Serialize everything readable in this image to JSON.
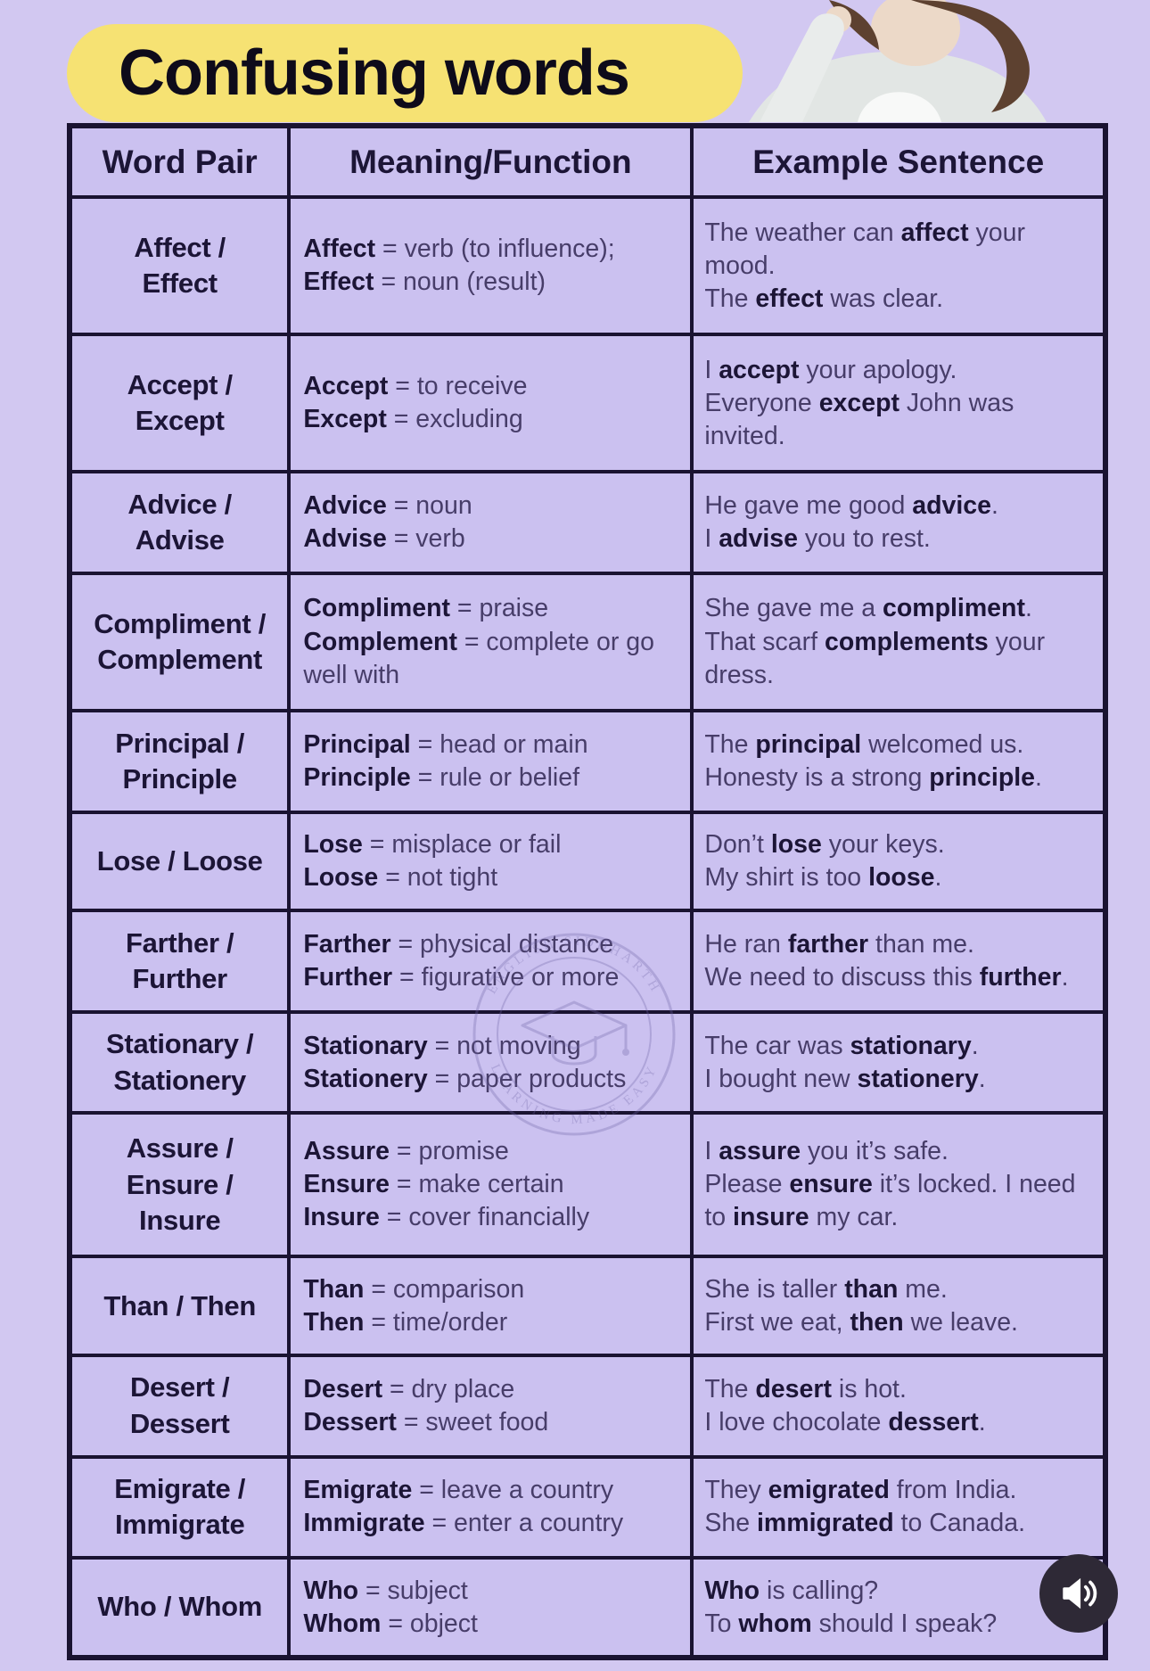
{
  "title": "Confusing words",
  "table": {
    "headers": [
      "Word Pair",
      "Meaning/Function",
      "Example Sentence"
    ],
    "rows": [
      {
        "pair": "Affect /\nEffect",
        "meaning": "**Affect** = verb (to influence);\n**Effect** = noun (result)",
        "example": "The weather can **affect** your mood.\nThe **effect** was clear."
      },
      {
        "pair": "Accept /\nExcept",
        "meaning": "**Accept** = to receive\n**Except** = excluding",
        "example": "I **accept** your apology.\nEveryone **except** John was invited."
      },
      {
        "pair": "Advice /\nAdvise",
        "meaning": "**Advice** = noun\n**Advise** = verb",
        "example": "He gave me good **advice**.\nI **advise** you to rest."
      },
      {
        "pair": "Compliment /\nComplement",
        "meaning": "**Compliment** = praise\n**Complement** = complete or go well with",
        "example": "She gave me a **compliment**.\nThat scarf **complements** your dress."
      },
      {
        "pair": "Principal /\nPrinciple",
        "meaning": "**Principal** = head or main\n**Principle** = rule or belief",
        "example": "The **principal** welcomed us.\nHonesty is a strong **principle**."
      },
      {
        "pair": "Lose / Loose",
        "meaning": "**Lose** = misplace or fail\n**Loose** = not tight",
        "example": "Don’t **lose** your keys.\nMy shirt is too **loose**."
      },
      {
        "pair": "Farther /\nFurther",
        "meaning": "**Farther** = physical distance\n**Further** = figurative or more",
        "example": "He ran **farther** than me.\nWe need to discuss this **further**."
      },
      {
        "pair": "Stationary /\nStationery",
        "meaning": "**Stationary** = not moving\n**Stationery** = paper products",
        "example": "The car was **stationary**.\nI bought new **stationery**."
      },
      {
        "pair": "Assure /\nEnsure /\nInsure",
        "meaning": "**Assure** = promise\n**Ensure** = make certain\n**Insure** = cover financially",
        "example": "I **assure** you it’s safe.\nPlease **ensure** it’s locked. I need to **insure** my car."
      },
      {
        "pair": "Than / Then",
        "meaning": "**Than** = comparison\n**Then** = time/order",
        "example": "She is taller **than** me.\nFirst we eat, **then** we leave."
      },
      {
        "pair": "Desert /\nDessert",
        "meaning": "**Desert** = dry place\n**Dessert** = sweet food",
        "example": "The **desert** is hot.\nI love chocolate **dessert**."
      },
      {
        "pair": "Emigrate /\nImmigrate",
        "meaning": "**Emigrate** = leave a country\n**Immigrate** = enter a country",
        "example": "They **emigrated** from India.\nShe **immigrated** to Canada."
      },
      {
        "pair": "Who / Whom",
        "meaning": "**Who** = subject\n**Whom** = object",
        "example": "**Who** is calling?\nTo **whom** should I speak?"
      }
    ]
  },
  "watermark": {
    "icon": "graduation-cap-icon",
    "top_text": "ENGLISH SIDDHARTH",
    "bottom_text": "LEARNING MADE EASY"
  },
  "audio_button": {
    "icon": "speaker-icon"
  },
  "colors": {
    "page_bg": "#d2c8f1",
    "cell_bg": "#cbc1f0",
    "border": "#1a1331",
    "title_highlight": "#f6e273",
    "text_dark": "#1c1536",
    "text_regular": "#473d69",
    "audio_button_bg": "#2e2936",
    "audio_icon": "#ffffff",
    "watermark": "#6f64a5"
  }
}
